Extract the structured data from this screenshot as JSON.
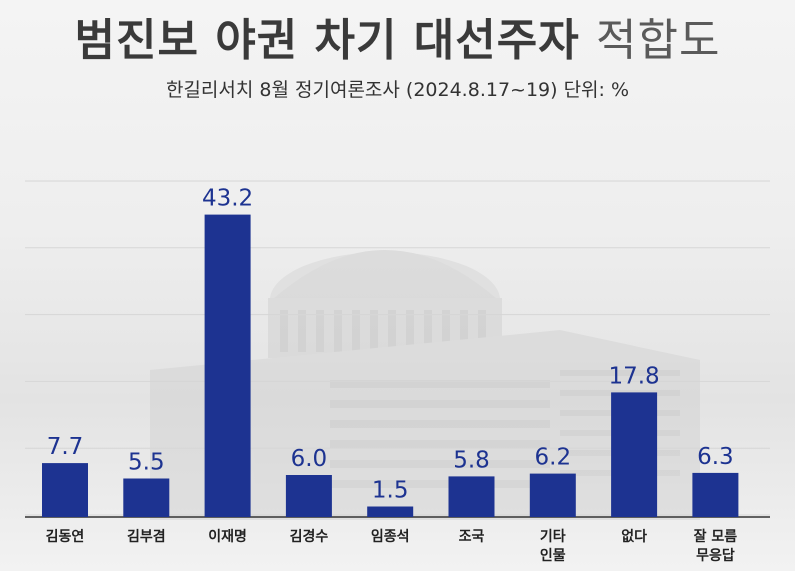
{
  "header": {
    "title_main": "범진보 야권 차기 대선주자",
    "title_light": "적합도",
    "subtitle": "한길리서치 8월 정기여론조사 (2024.8.17~19) 단위: %"
  },
  "colors": {
    "bar": "#1d3391",
    "grid": "#d6d6d6",
    "axis": "#333333"
  },
  "chart_data": {
    "type": "bar",
    "title": "범진보 야권 차기 대선주자 적합도",
    "subtitle": "한길리서치 8월 정기여론조사 (2024.8.17~19) 단위: %",
    "categories": [
      [
        "김동연"
      ],
      [
        "김부겸"
      ],
      [
        "이재명"
      ],
      [
        "김경수"
      ],
      [
        "임종석"
      ],
      [
        "조국"
      ],
      [
        "기타",
        "인물"
      ],
      [
        "없다"
      ],
      [
        "잘 모름",
        "무응답"
      ]
    ],
    "values": [
      7.7,
      5.5,
      43.2,
      6.0,
      1.5,
      5.8,
      6.2,
      17.8,
      6.3
    ],
    "value_labels": [
      "7.7",
      "5.5",
      "43.2",
      "6.0",
      "1.5",
      "5.8",
      "6.2",
      "17.8",
      "6.3"
    ],
    "ylim": [
      0,
      48
    ],
    "grid": true,
    "xlabel": "",
    "ylabel": ""
  }
}
